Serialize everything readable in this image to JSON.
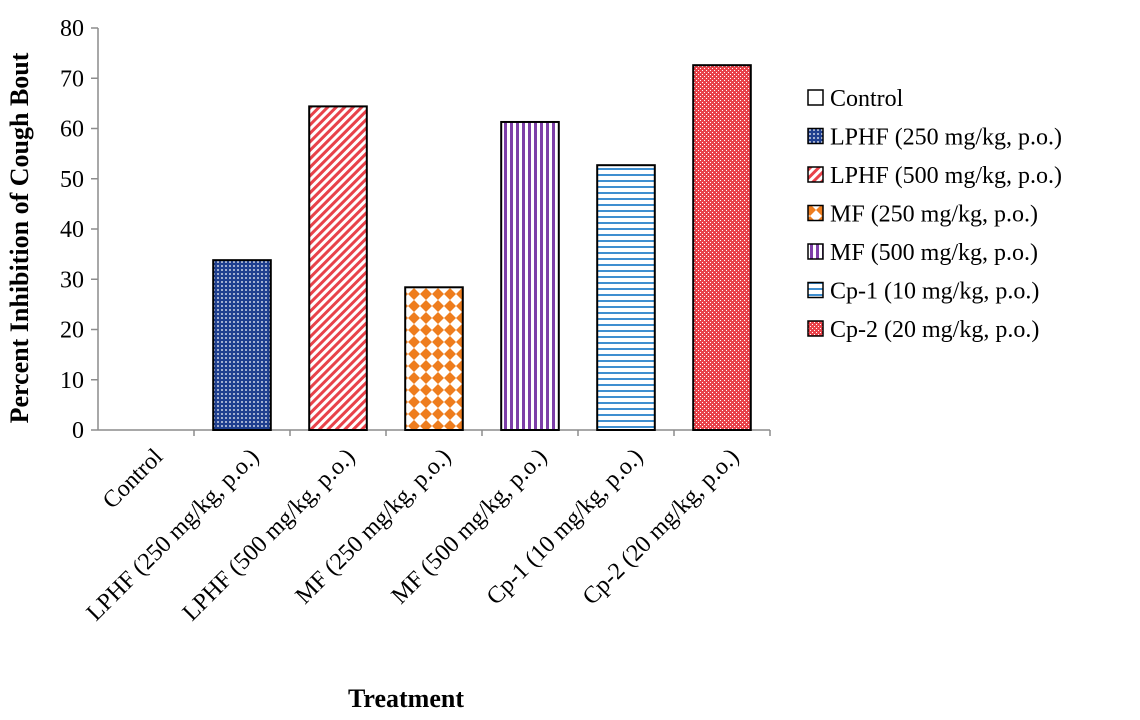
{
  "chart_data": {
    "type": "bar",
    "xlabel": "Treatment",
    "ylabel": "Percent Inhibition of Cough Bout",
    "ylim": [
      0,
      80
    ],
    "yticks": [
      0,
      10,
      20,
      30,
      40,
      50,
      60,
      70,
      80
    ],
    "grid": false,
    "legend_position": "right",
    "categories": [
      "Control",
      "LPHF (250 mg/kg, p.o.)",
      "LPHF (500 mg/kg, p.o.)",
      "MF (250 mg/kg, p.o.)",
      "MF (500 mg/kg, p.o.)",
      "Cp-1 (10 mg/kg, p.o.)",
      "Cp-2 (20 mg/kg, p.o.)"
    ],
    "values": [
      0,
      33.8,
      64.4,
      28.4,
      61.3,
      52.7,
      72.6
    ],
    "legend": [
      {
        "label": "Control",
        "pattern": "plain",
        "color": "#ffffff"
      },
      {
        "label": "LPHF (250 mg/kg, p.o.)",
        "pattern": "dots",
        "color": "#1f3f8f"
      },
      {
        "label": "LPHF (500 mg/kg, p.o.)",
        "pattern": "diag",
        "color": "#e8424a"
      },
      {
        "label": "MF (250 mg/kg, p.o.)",
        "pattern": "diamond",
        "color": "#ee7d1e"
      },
      {
        "label": "MF (500 mg/kg, p.o.)",
        "pattern": "vlines",
        "color": "#7d3fa8"
      },
      {
        "label": "Cp-1 (10 mg/kg, p.o.)",
        "pattern": "hlines",
        "color": "#3f8fd0"
      },
      {
        "label": "Cp-2 (20 mg/kg, p.o.)",
        "pattern": "cross",
        "color": "#e8424a"
      }
    ]
  }
}
